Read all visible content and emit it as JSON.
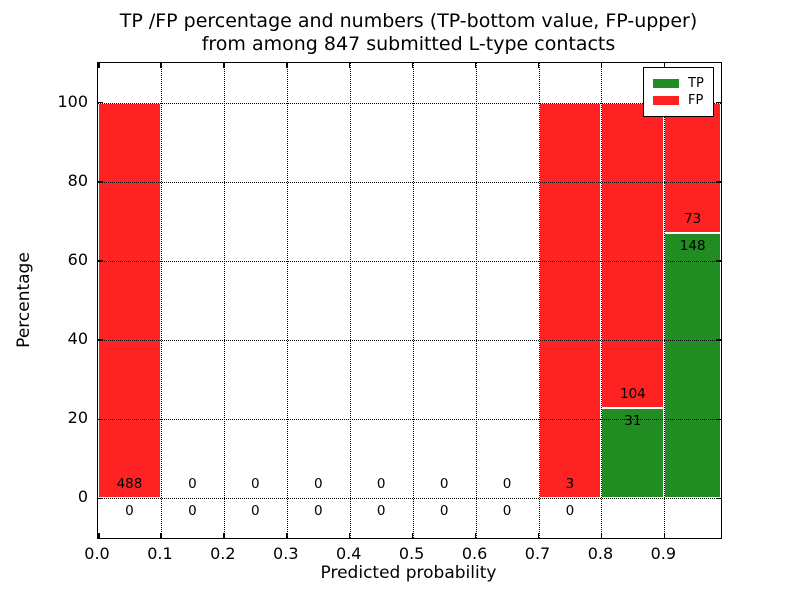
{
  "title": {
    "line1": "TP /FP percentage and numbers (TP-bottom value, FP-upper)",
    "line2": "from among 847 submitted L-type contacts"
  },
  "axes": {
    "xlabel": "Predicted probability",
    "ylabel": "Percentage",
    "yticks": [
      0,
      20,
      40,
      60,
      80,
      100
    ],
    "ytick_labels": [
      "0",
      "20",
      "40",
      "60",
      "80",
      "100"
    ],
    "xticks": [
      0.0,
      0.1,
      0.2,
      0.3,
      0.4,
      0.5,
      0.6,
      0.7,
      0.8,
      0.9
    ],
    "xtick_labels": [
      "0.0",
      "0.1",
      "0.2",
      "0.3",
      "0.4",
      "0.5",
      "0.6",
      "0.7",
      "0.8",
      "0.9"
    ],
    "ylim": [
      -10,
      110
    ],
    "xlim": [
      0,
      0.99
    ],
    "grid": "dotted"
  },
  "legend": {
    "position": "upper-right",
    "items": [
      {
        "label": "TP",
        "color": "#218c21"
      },
      {
        "label": "FP",
        "color": "#ff2222"
      }
    ]
  },
  "colors": {
    "tp": "#218c21",
    "fp": "#ff2222",
    "grid": "#000000",
    "text": "#000000",
    "background": "#ffffff",
    "bar_edge": "#ffffff"
  },
  "chart_data": {
    "type": "bar",
    "stacked": true,
    "orientation": "vertical",
    "title": "TP /FP percentage and numbers (TP-bottom value, FP-upper) from among 847 submitted L-type contacts",
    "xlabel": "Predicted probability",
    "ylabel": "Percentage",
    "ylim": [
      -10,
      110
    ],
    "xlim": [
      0,
      0.99
    ],
    "bin_width": 0.1,
    "total_contacts": 847,
    "series_note": "TP percentage is bottom (green) segment, FP percentage is upper (red) segment; annotations show raw counts (FP count above boundary, TP count below)",
    "bins": [
      {
        "range": [
          0.0,
          0.1
        ],
        "tp_count": 0,
        "fp_count": 488,
        "tp_pct": 0,
        "fp_pct": 100
      },
      {
        "range": [
          0.1,
          0.2
        ],
        "tp_count": 0,
        "fp_count": 0,
        "tp_pct": 0,
        "fp_pct": 0
      },
      {
        "range": [
          0.2,
          0.3
        ],
        "tp_count": 0,
        "fp_count": 0,
        "tp_pct": 0,
        "fp_pct": 0
      },
      {
        "range": [
          0.3,
          0.4
        ],
        "tp_count": 0,
        "fp_count": 0,
        "tp_pct": 0,
        "fp_pct": 0
      },
      {
        "range": [
          0.4,
          0.5
        ],
        "tp_count": 0,
        "fp_count": 0,
        "tp_pct": 0,
        "fp_pct": 0
      },
      {
        "range": [
          0.5,
          0.6
        ],
        "tp_count": 0,
        "fp_count": 0,
        "tp_pct": 0,
        "fp_pct": 0
      },
      {
        "range": [
          0.6,
          0.7
        ],
        "tp_count": 0,
        "fp_count": 0,
        "tp_pct": 0,
        "fp_pct": 0
      },
      {
        "range": [
          0.7,
          0.8
        ],
        "tp_count": 0,
        "fp_count": 3,
        "tp_pct": 0,
        "fp_pct": 100
      },
      {
        "range": [
          0.8,
          0.9
        ],
        "tp_count": 31,
        "fp_count": 104,
        "tp_pct": 22.96,
        "fp_pct": 77.04
      },
      {
        "range": [
          0.9,
          1.0
        ],
        "tp_count": 148,
        "fp_count": 73,
        "tp_pct": 66.97,
        "fp_pct": 33.03
      }
    ]
  }
}
